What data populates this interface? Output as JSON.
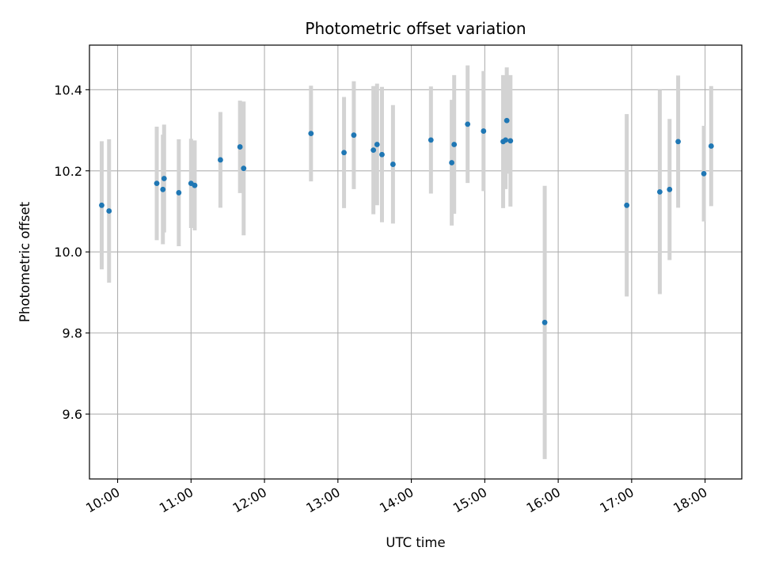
{
  "chart_data": {
    "type": "scatter",
    "title": "Photometric offset variation",
    "xlabel": "UTC time",
    "ylabel": "Photometric offset",
    "x_unit": "time of day (UTC, hh:mm)",
    "xlim": [
      "09:37",
      "18:30"
    ],
    "ylim": [
      9.44,
      10.51
    ],
    "x_ticks": [
      "10:00",
      "11:00",
      "12:00",
      "13:00",
      "14:00",
      "15:00",
      "16:00",
      "17:00",
      "18:00"
    ],
    "y_ticks": [
      "9.6",
      "9.8",
      "10.0",
      "10.2",
      "10.4"
    ],
    "grid": true,
    "marker_color": "#1f77b4",
    "errorbar_color": "#d3d3d3",
    "series": [
      {
        "points": [
          {
            "x": "09:47",
            "y": 10.115,
            "err": 0.158
          },
          {
            "x": "09:53",
            "y": 10.101,
            "err": 0.177
          },
          {
            "x": "10:32",
            "y": 10.169,
            "err": 0.14
          },
          {
            "x": "10:37",
            "y": 10.154,
            "err": 0.135
          },
          {
            "x": "10:38",
            "y": 10.181,
            "err": 0.133
          },
          {
            "x": "10:50",
            "y": 10.146,
            "err": 0.132
          },
          {
            "x": "11:00",
            "y": 10.169,
            "err": 0.11
          },
          {
            "x": "11:03",
            "y": 10.164,
            "err": 0.111
          },
          {
            "x": "11:24",
            "y": 10.227,
            "err": 0.118
          },
          {
            "x": "11:40",
            "y": 10.259,
            "err": 0.114
          },
          {
            "x": "11:43",
            "y": 10.206,
            "err": 0.165
          },
          {
            "x": "12:38",
            "y": 10.292,
            "err": 0.118
          },
          {
            "x": "13:05",
            "y": 10.245,
            "err": 0.137
          },
          {
            "x": "13:13",
            "y": 10.288,
            "err": 0.133
          },
          {
            "x": "13:29",
            "y": 10.251,
            "err": 0.158
          },
          {
            "x": "13:32",
            "y": 10.265,
            "err": 0.15
          },
          {
            "x": "13:36",
            "y": 10.24,
            "err": 0.167
          },
          {
            "x": "13:45",
            "y": 10.216,
            "err": 0.146
          },
          {
            "x": "14:16",
            "y": 10.276,
            "err": 0.132
          },
          {
            "x": "14:33",
            "y": 10.22,
            "err": 0.155
          },
          {
            "x": "14:35",
            "y": 10.265,
            "err": 0.171
          },
          {
            "x": "14:46",
            "y": 10.315,
            "err": 0.145
          },
          {
            "x": "14:59",
            "y": 10.298,
            "err": 0.148
          },
          {
            "x": "15:15",
            "y": 10.272,
            "err": 0.164
          },
          {
            "x": "15:17",
            "y": 10.276,
            "err": 0.121
          },
          {
            "x": "15:18",
            "y": 10.324,
            "err": 0.131
          },
          {
            "x": "15:21",
            "y": 10.274,
            "err": 0.162
          },
          {
            "x": "15:49",
            "y": 9.826,
            "err": 0.337
          },
          {
            "x": "16:56",
            "y": 10.115,
            "err": 0.225
          },
          {
            "x": "17:23",
            "y": 10.148,
            "err": 0.252
          },
          {
            "x": "17:31",
            "y": 10.154,
            "err": 0.174
          },
          {
            "x": "17:38",
            "y": 10.272,
            "err": 0.163
          },
          {
            "x": "17:59",
            "y": 10.193,
            "err": 0.118
          },
          {
            "x": "18:05",
            "y": 10.261,
            "err": 0.148
          }
        ]
      }
    ]
  }
}
